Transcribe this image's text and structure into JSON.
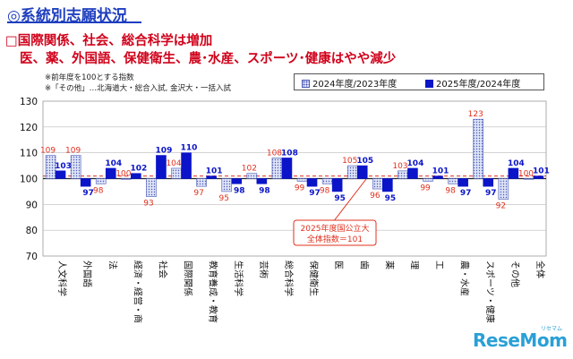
{
  "heading": {
    "title": "◎系統別志願状況",
    "subtitle_line1": "□国際関係、社会、総合科学は増加",
    "subtitle_line2": "医、薬、外国語、保健衛生、農･水産、スポーツ･健康はやや減少",
    "note1": "※前年度を100とする指数",
    "note2": "※「その他」…北海道大・総合入試, 金沢大・一括入試"
  },
  "callout": {
    "line1": "2025年度国公立大",
    "line2": "全体指数＝101"
  },
  "logo": {
    "text": "ReseMom",
    "small": "リセマム"
  },
  "colors": {
    "series1_fill": "#dde3f7",
    "series1_stroke": "#4a58b5",
    "series2_fill": "#0b14c8",
    "series1_label": "#e0301e",
    "series2_label": "#0b14c8",
    "reference_line": "#e0301e",
    "title": "#1f3fbf"
  },
  "chart_data": {
    "type": "bar",
    "categories": [
      "人文科学",
      "外国語",
      "法",
      "経済・経営・商",
      "社会",
      "国際関係",
      "教育養成・教育",
      "生活科学",
      "芸術",
      "総合科学",
      "保健衛生",
      "医",
      "歯",
      "薬",
      "理",
      "工",
      "農・水産",
      "スポーツ・健康",
      "その他",
      "全体"
    ],
    "series": [
      {
        "name": "2024年度/2023年度",
        "values": [
          109,
          109,
          98,
          100,
          93,
          104,
          97,
          95,
          102,
          108,
          99,
          98,
          105,
          96,
          103,
          99,
          98,
          123,
          92,
          100
        ]
      },
      {
        "name": "2025年度/2024年度",
        "values": [
          103,
          97,
          104,
          102,
          109,
          110,
          101,
          98,
          98,
          108,
          97,
          95,
          105,
          95,
          104,
          101,
          97,
          97,
          104,
          101
        ]
      }
    ],
    "reference_line": 101,
    "ylim": [
      70,
      130
    ],
    "yticks": [
      70,
      80,
      90,
      100,
      110,
      120,
      130
    ],
    "baseline": 100,
    "xlabel": "",
    "ylabel": "",
    "grid": true,
    "legend_position": "top-right"
  }
}
